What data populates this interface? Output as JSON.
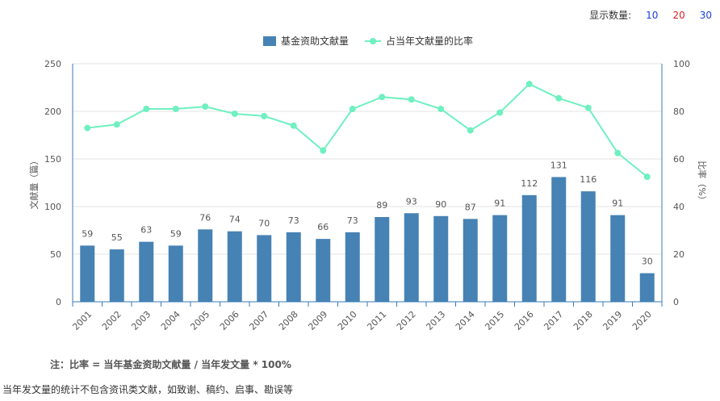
{
  "controls": {
    "label": "显示数量:",
    "options": [
      {
        "label": "10",
        "color": "#1a3fd6"
      },
      {
        "label": "20",
        "color": "#e01f1f"
      },
      {
        "label": "30",
        "color": "#1a3fd6"
      }
    ]
  },
  "chart_data": {
    "type": "bar+line",
    "categories": [
      "2001",
      "2002",
      "2003",
      "2004",
      "2005",
      "2006",
      "2007",
      "2008",
      "2009",
      "2010",
      "2011",
      "2012",
      "2013",
      "2014",
      "2015",
      "2016",
      "2017",
      "2018",
      "2019",
      "2020"
    ],
    "series": [
      {
        "name": "基金资助文献量",
        "type": "bar",
        "axis": "left",
        "color": "#4682b4",
        "values": [
          59,
          55,
          63,
          59,
          76,
          74,
          70,
          73,
          66,
          73,
          89,
          93,
          90,
          87,
          91,
          112,
          131,
          116,
          91,
          30
        ]
      },
      {
        "name": "占当年文献量的比率",
        "type": "line",
        "axis": "right",
        "color": "#6ff0c0",
        "values": [
          73,
          74.5,
          81,
          81,
          82,
          79,
          78,
          74,
          63.5,
          81,
          86,
          85,
          81,
          72,
          79.5,
          91.5,
          85.5,
          81.5,
          62.5,
          52.5
        ]
      }
    ],
    "yleft": {
      "label": "文献量（篇）",
      "min": 0,
      "max": 250,
      "ticks": [
        0,
        50,
        100,
        150,
        200,
        250
      ]
    },
    "yright": {
      "label": "比率（%）",
      "min": 0,
      "max": 100,
      "ticks": [
        0,
        20,
        40,
        60,
        80,
        100
      ]
    },
    "legend_position": "top-center"
  },
  "note": "注：比率 = 当年基金资助文献量 / 当年发文量 * 100%",
  "footnote": "当年发文量的统计不包含资讯类文献，如致谢、稿约、启事、勘误等"
}
